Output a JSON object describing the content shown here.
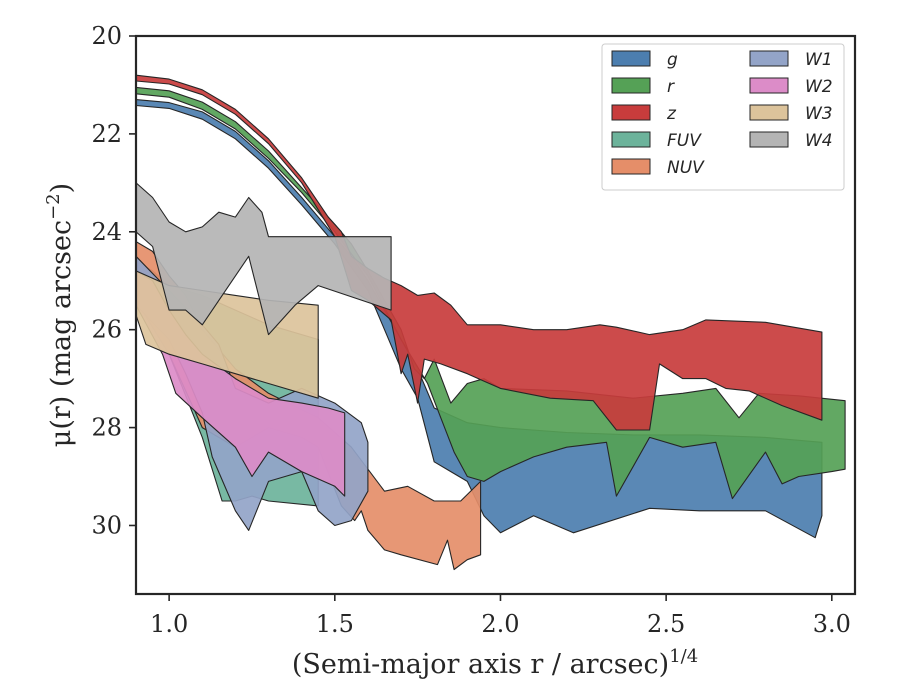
{
  "chart_data": {
    "type": "area",
    "xlabel": "(Semi-major axis r / arcsec)",
    "xlabel_sup": "1/4",
    "ylabel": "μ(r) (mag arcsec",
    "ylabel_sup": "−2",
    "ylabel_close": ")",
    "xlim": [
      0.9,
      3.07
    ],
    "ylim": [
      31.4,
      20.0
    ],
    "y_inverted": true,
    "grid": false,
    "legend_position": "top-right",
    "legend_columns": 2,
    "xticks": [
      1.0,
      1.5,
      2.0,
      2.5,
      3.0
    ],
    "xtick_labels": [
      "1.0",
      "1.5",
      "2.0",
      "2.5",
      "3.0"
    ],
    "yticks": [
      20,
      22,
      24,
      26,
      28,
      30
    ],
    "ytick_labels": [
      "20",
      "22",
      "24",
      "26",
      "28",
      "30"
    ],
    "series": [
      {
        "name": "g",
        "color": "#4c7eaf",
        "upper": [
          [
            0.9,
            21.3
          ],
          [
            1.0,
            21.36
          ],
          [
            1.1,
            21.55
          ],
          [
            1.2,
            21.95
          ],
          [
            1.3,
            22.55
          ],
          [
            1.4,
            23.3
          ],
          [
            1.5,
            24.1
          ],
          [
            1.55,
            24.5
          ],
          [
            1.6,
            25.0
          ],
          [
            1.65,
            25.6
          ],
          [
            1.7,
            26.2
          ],
          [
            1.75,
            26.8
          ],
          [
            1.8,
            27.6
          ],
          [
            1.9,
            27.9
          ],
          [
            2.0,
            28.0
          ],
          [
            2.2,
            28.1
          ],
          [
            2.4,
            28.15
          ],
          [
            2.6,
            28.15
          ],
          [
            2.8,
            28.2
          ],
          [
            2.97,
            28.3
          ]
        ],
        "lower": [
          [
            2.97,
            29.8
          ],
          [
            2.95,
            30.25
          ],
          [
            2.8,
            29.7
          ],
          [
            2.6,
            29.7
          ],
          [
            2.45,
            29.65
          ],
          [
            2.22,
            30.15
          ],
          [
            2.1,
            29.8
          ],
          [
            2.0,
            30.15
          ],
          [
            1.95,
            29.8
          ],
          [
            1.9,
            29.1
          ],
          [
            1.85,
            28.9
          ],
          [
            1.8,
            28.7
          ],
          [
            1.75,
            27.4
          ],
          [
            1.7,
            26.8
          ],
          [
            1.6,
            25.2
          ],
          [
            1.5,
            24.25
          ],
          [
            1.4,
            23.45
          ],
          [
            1.3,
            22.7
          ],
          [
            1.2,
            22.1
          ],
          [
            1.1,
            21.7
          ],
          [
            1.0,
            21.48
          ],
          [
            0.9,
            21.42
          ]
        ]
      },
      {
        "name": "r",
        "color": "#55a156",
        "upper": [
          [
            0.9,
            21.05
          ],
          [
            1.0,
            21.12
          ],
          [
            1.1,
            21.35
          ],
          [
            1.2,
            21.75
          ],
          [
            1.3,
            22.35
          ],
          [
            1.4,
            23.1
          ],
          [
            1.5,
            23.85
          ],
          [
            1.55,
            24.25
          ],
          [
            1.6,
            24.8
          ],
          [
            1.7,
            26.0
          ],
          [
            1.74,
            26.8
          ],
          [
            1.77,
            27.0
          ],
          [
            1.8,
            26.6
          ],
          [
            1.85,
            27.5
          ],
          [
            1.9,
            27.1
          ],
          [
            1.95,
            27.0
          ],
          [
            2.0,
            27.2
          ],
          [
            2.2,
            27.25
          ],
          [
            2.4,
            27.4
          ],
          [
            2.55,
            27.3
          ],
          [
            2.65,
            27.2
          ],
          [
            2.72,
            27.8
          ],
          [
            2.78,
            27.3
          ],
          [
            2.9,
            27.35
          ],
          [
            3.04,
            27.45
          ]
        ],
        "lower": [
          [
            3.04,
            28.85
          ],
          [
            3.0,
            28.9
          ],
          [
            2.9,
            29.0
          ],
          [
            2.85,
            29.15
          ],
          [
            2.8,
            28.5
          ],
          [
            2.7,
            29.45
          ],
          [
            2.65,
            28.3
          ],
          [
            2.55,
            28.4
          ],
          [
            2.45,
            28.2
          ],
          [
            2.35,
            29.4
          ],
          [
            2.32,
            28.3
          ],
          [
            2.2,
            28.4
          ],
          [
            2.1,
            28.6
          ],
          [
            2.0,
            28.9
          ],
          [
            1.95,
            29.1
          ],
          [
            1.9,
            29.0
          ],
          [
            1.86,
            28.5
          ],
          [
            1.82,
            27.8
          ],
          [
            1.78,
            27.1
          ],
          [
            1.7,
            26.2
          ],
          [
            1.6,
            24.9
          ],
          [
            1.5,
            24.0
          ],
          [
            1.4,
            23.2
          ],
          [
            1.3,
            22.5
          ],
          [
            1.2,
            21.9
          ],
          [
            1.1,
            21.5
          ],
          [
            1.0,
            21.25
          ],
          [
            0.9,
            21.18
          ]
        ]
      },
      {
        "name": "z",
        "color": "#c83c3c",
        "upper": [
          [
            0.9,
            20.8
          ],
          [
            1.0,
            20.88
          ],
          [
            1.1,
            21.1
          ],
          [
            1.2,
            21.5
          ],
          [
            1.3,
            22.1
          ],
          [
            1.4,
            22.9
          ],
          [
            1.48,
            23.7
          ],
          [
            1.52,
            24.0
          ],
          [
            1.55,
            24.5
          ],
          [
            1.6,
            24.75
          ],
          [
            1.65,
            24.95
          ],
          [
            1.7,
            25.1
          ],
          [
            1.75,
            25.3
          ],
          [
            1.8,
            25.25
          ],
          [
            1.85,
            25.5
          ],
          [
            1.9,
            25.9
          ],
          [
            2.0,
            25.9
          ],
          [
            2.1,
            26.0
          ],
          [
            2.2,
            26.0
          ],
          [
            2.3,
            25.9
          ],
          [
            2.35,
            25.95
          ],
          [
            2.45,
            26.1
          ],
          [
            2.55,
            26.0
          ],
          [
            2.62,
            25.8
          ],
          [
            2.8,
            25.85
          ],
          [
            2.97,
            26.05
          ]
        ],
        "lower": [
          [
            2.97,
            27.85
          ],
          [
            2.85,
            27.55
          ],
          [
            2.75,
            27.25
          ],
          [
            2.68,
            27.2
          ],
          [
            2.62,
            27.0
          ],
          [
            2.55,
            27.0
          ],
          [
            2.48,
            26.7
          ],
          [
            2.45,
            28.05
          ],
          [
            2.35,
            28.05
          ],
          [
            2.28,
            27.45
          ],
          [
            2.15,
            27.4
          ],
          [
            2.0,
            27.2
          ],
          [
            1.95,
            27.05
          ],
          [
            1.9,
            26.9
          ],
          [
            1.82,
            26.7
          ],
          [
            1.77,
            26.6
          ],
          [
            1.75,
            27.5
          ],
          [
            1.72,
            26.5
          ],
          [
            1.7,
            26.9
          ],
          [
            1.67,
            25.8
          ],
          [
            1.6,
            25.4
          ],
          [
            1.55,
            25.2
          ],
          [
            1.5,
            24.1
          ],
          [
            1.4,
            23.0
          ],
          [
            1.3,
            22.2
          ],
          [
            1.2,
            21.6
          ],
          [
            1.1,
            21.2
          ],
          [
            1.0,
            20.98
          ],
          [
            0.9,
            20.92
          ]
        ]
      },
      {
        "name": "FUV",
        "color": "#6cb39b",
        "upper": [
          [
            0.9,
            24.6
          ],
          [
            0.95,
            24.8
          ],
          [
            1.0,
            25.1
          ],
          [
            1.1,
            25.3
          ],
          [
            1.2,
            25.6
          ],
          [
            1.3,
            25.9
          ],
          [
            1.45,
            26.2
          ]
        ],
        "lower": [
          [
            1.45,
            29.6
          ],
          [
            1.3,
            29.5
          ],
          [
            1.25,
            29.4
          ],
          [
            1.2,
            29.5
          ],
          [
            1.16,
            29.5
          ],
          [
            1.1,
            28.2
          ],
          [
            1.0,
            26.5
          ],
          [
            0.9,
            25.1
          ]
        ]
      },
      {
        "name": "NUV",
        "color": "#e58e69",
        "upper": [
          [
            0.9,
            24.2
          ],
          [
            0.95,
            24.4
          ],
          [
            1.0,
            24.9
          ],
          [
            1.05,
            25.3
          ],
          [
            1.1,
            26.0
          ],
          [
            1.15,
            26.4
          ],
          [
            1.2,
            26.8
          ],
          [
            1.3,
            27.3
          ],
          [
            1.45,
            27.8
          ],
          [
            1.55,
            28.4
          ],
          [
            1.65,
            29.3
          ],
          [
            1.72,
            29.2
          ],
          [
            1.8,
            29.5
          ],
          [
            1.88,
            29.5
          ],
          [
            1.94,
            29.1
          ]
        ],
        "lower": [
          [
            1.94,
            30.6
          ],
          [
            1.9,
            30.7
          ],
          [
            1.86,
            30.9
          ],
          [
            1.84,
            30.3
          ],
          [
            1.81,
            30.8
          ],
          [
            1.7,
            30.6
          ],
          [
            1.65,
            30.5
          ],
          [
            1.6,
            30.1
          ],
          [
            1.58,
            29.7
          ],
          [
            1.56,
            29.9
          ],
          [
            1.52,
            29.6
          ],
          [
            1.45,
            28.4
          ],
          [
            1.4,
            28.2
          ],
          [
            1.3,
            28.0
          ],
          [
            1.2,
            28.4
          ],
          [
            1.1,
            28.0
          ],
          [
            1.0,
            26.5
          ],
          [
            0.9,
            25.4
          ]
        ]
      },
      {
        "name": "W1",
        "color": "#93a4c8",
        "upper": [
          [
            0.9,
            24.5
          ],
          [
            1.0,
            25.2
          ],
          [
            1.1,
            25.9
          ],
          [
            1.15,
            26.3
          ],
          [
            1.2,
            27.2
          ],
          [
            1.3,
            27.5
          ],
          [
            1.4,
            27.2
          ],
          [
            1.5,
            27.5
          ],
          [
            1.58,
            27.9
          ],
          [
            1.6,
            28.3
          ]
        ],
        "lower": [
          [
            1.6,
            29.3
          ],
          [
            1.55,
            29.9
          ],
          [
            1.5,
            30.0
          ],
          [
            1.45,
            29.7
          ],
          [
            1.4,
            28.9
          ],
          [
            1.3,
            29.1
          ],
          [
            1.24,
            30.1
          ],
          [
            1.2,
            29.7
          ],
          [
            1.13,
            28.6
          ],
          [
            1.1,
            27.7
          ],
          [
            1.05,
            26.9
          ],
          [
            1.0,
            26.2
          ],
          [
            0.9,
            25.5
          ]
        ]
      },
      {
        "name": "W2",
        "color": "#dc8cc8",
        "upper": [
          [
            0.9,
            24.8
          ],
          [
            0.95,
            25.0
          ],
          [
            1.0,
            25.6
          ],
          [
            1.05,
            26.1
          ],
          [
            1.1,
            26.5
          ],
          [
            1.2,
            27.0
          ],
          [
            1.3,
            27.4
          ],
          [
            1.4,
            27.5
          ],
          [
            1.48,
            27.6
          ],
          [
            1.53,
            27.7
          ]
        ],
        "lower": [
          [
            1.53,
            29.4
          ],
          [
            1.5,
            29.2
          ],
          [
            1.4,
            28.9
          ],
          [
            1.3,
            28.5
          ],
          [
            1.25,
            29.0
          ],
          [
            1.2,
            28.4
          ],
          [
            1.1,
            27.8
          ],
          [
            1.02,
            27.3
          ],
          [
            0.98,
            26.5
          ],
          [
            0.9,
            25.5
          ]
        ]
      },
      {
        "name": "W3",
        "color": "#dcc39b",
        "upper": [
          [
            0.9,
            24.8
          ],
          [
            1.0,
            25.1
          ],
          [
            1.1,
            25.2
          ],
          [
            1.2,
            25.3
          ],
          [
            1.3,
            25.4
          ],
          [
            1.45,
            25.5
          ]
        ],
        "lower": [
          [
            1.45,
            27.4
          ],
          [
            1.3,
            27.1
          ],
          [
            1.2,
            26.9
          ],
          [
            1.1,
            26.7
          ],
          [
            1.0,
            26.5
          ],
          [
            0.93,
            26.3
          ],
          [
            0.9,
            25.7
          ]
        ]
      },
      {
        "name": "W4",
        "color": "#b4b4b4",
        "upper": [
          [
            0.9,
            23.0
          ],
          [
            0.95,
            23.3
          ],
          [
            1.0,
            23.8
          ],
          [
            1.05,
            24.0
          ],
          [
            1.1,
            23.9
          ],
          [
            1.15,
            23.6
          ],
          [
            1.2,
            23.7
          ],
          [
            1.24,
            23.3
          ],
          [
            1.28,
            23.6
          ],
          [
            1.3,
            24.1
          ],
          [
            1.45,
            24.1
          ],
          [
            1.67,
            24.1
          ]
        ],
        "lower": [
          [
            1.67,
            25.6
          ],
          [
            1.45,
            25.1
          ],
          [
            1.38,
            25.5
          ],
          [
            1.3,
            26.1
          ],
          [
            1.24,
            24.5
          ],
          [
            1.1,
            25.9
          ],
          [
            1.05,
            25.6
          ],
          [
            1.0,
            25.6
          ],
          [
            0.95,
            24.3
          ],
          [
            0.9,
            24.0
          ]
        ]
      }
    ]
  }
}
